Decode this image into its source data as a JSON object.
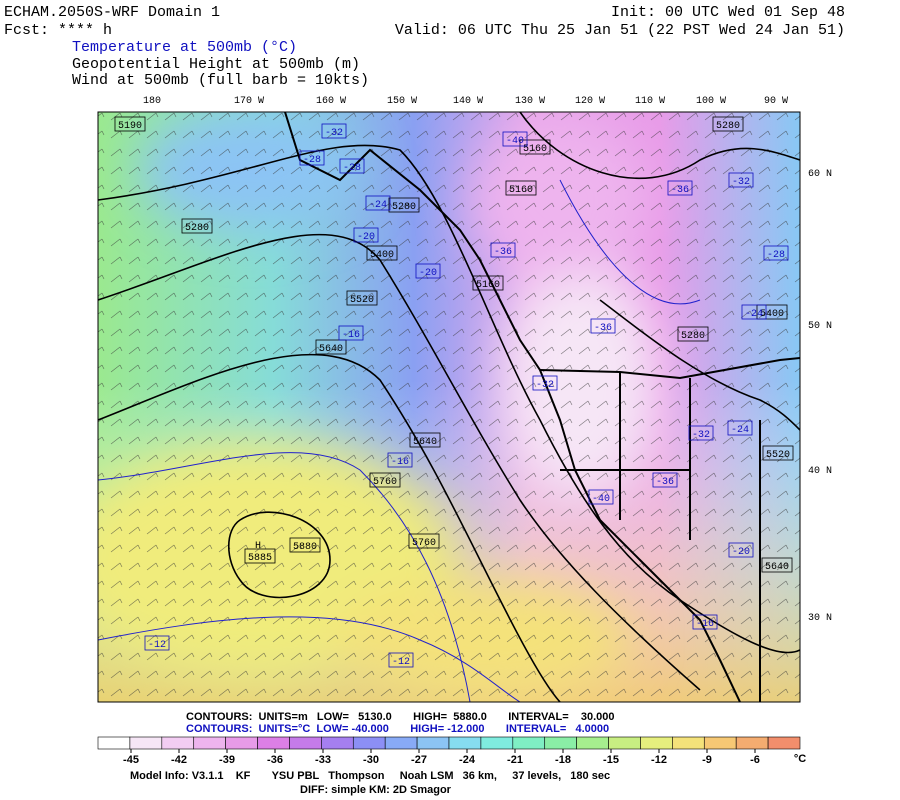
{
  "header": {
    "title": "ECHAM.2050S-WRF Domain 1",
    "fcst": "Fcst: **** h",
    "init": "Init: 00 UTC Wed 01 Sep 48",
    "valid": "Valid: 06 UTC Thu 25 Jan 51 (22 PST Wed 24 Jan 51)",
    "fields": [
      "Temperature at 500mb (°C)",
      "Geopotential Height at 500mb (m)",
      "Wind at 500mb (full barb = 10kts)"
    ]
  },
  "map": {
    "lon_labels": [
      "180",
      "170 W",
      "160 W",
      "150 W",
      "140 W",
      "130 W",
      "120 W",
      "110 W",
      "100 W",
      "90 W"
    ],
    "lat_labels": [
      "60 N",
      "50 N",
      "40 N",
      "30 N"
    ],
    "high_marker": "H",
    "height_labels": [
      "5190",
      "5280",
      "5160",
      "5160",
      "5280",
      "5280",
      "5400",
      "5160",
      "5520",
      "5280",
      "5640",
      "5400",
      "5640",
      "5520",
      "5760",
      "5760",
      "5640",
      "5880",
      "5885"
    ],
    "temp_labels": [
      "-32",
      "-40",
      "-28",
      "-28",
      "-24",
      "-20",
      "-20",
      "-36",
      "-36",
      "-32",
      "-28",
      "-36",
      "-16",
      "-24",
      "-32",
      "-32",
      "-24",
      "-16",
      "-40",
      "-36",
      "-20",
      "-16",
      "-12",
      "-12"
    ]
  },
  "footer": {
    "contours_height": "CONTOURS:  UNITS=m   LOW=   5130.0       HIGH=  5880.0       INTERVAL=    30.000",
    "contours_temp": "CONTOURS:  UNITS=°C  LOW= -40.000       HIGH= -12.000       INTERVAL=   4.0000",
    "colorbar": {
      "ticks": [
        -45,
        -42,
        -39,
        -36,
        -33,
        -30,
        -27,
        -24,
        -21,
        -18,
        -15,
        -12,
        -9,
        -6
      ],
      "unit": "°C",
      "colors": [
        "#ffffff",
        "#f6e6f6",
        "#f3cdf3",
        "#eeb4ee",
        "#e89be8",
        "#dc7fe6",
        "#c57be9",
        "#a57ff0",
        "#8c8ff5",
        "#88aaf6",
        "#8cc4f4",
        "#86dcf0",
        "#7fecdf",
        "#7fefc4",
        "#8aeea6",
        "#a6ee8e",
        "#c8ee82",
        "#e6ef7e",
        "#f4e27a",
        "#f6c874",
        "#f4ac70",
        "#f28e6c"
      ]
    },
    "model_info": "Model Info: V3.1.1    KF       YSU PBL   Thompson     Noah LSM   36 km,     37 levels,   180 sec",
    "diff": "DIFF: simple KM: 2D Smagor"
  }
}
